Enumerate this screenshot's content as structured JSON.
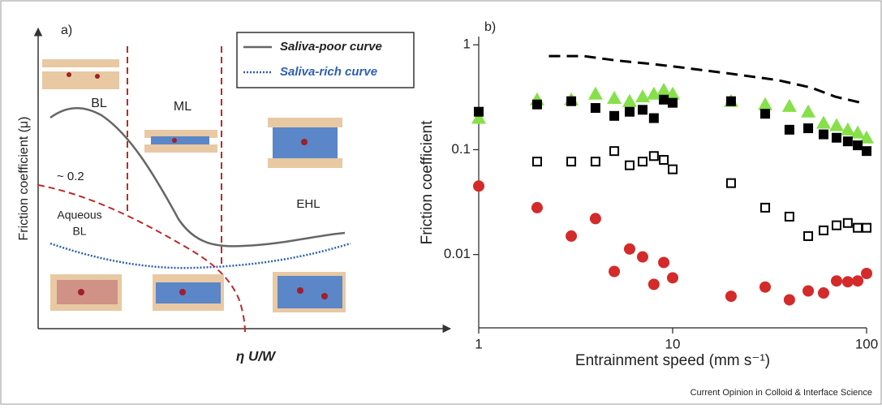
{
  "panel_a": {
    "label": "a)",
    "y_label": "Friction coefficient (μ)",
    "x_label": "η U/W",
    "legend": [
      {
        "name": "Saliva-poor curve",
        "color": "#666666"
      },
      {
        "name": "Saliva-rich curve",
        "color": "#2e5fb3"
      }
    ],
    "regions": [
      "BL",
      "ML",
      "EHL"
    ],
    "note": "~ 0.2",
    "aqueous": [
      "Aqueous",
      "BL"
    ]
  },
  "chart_data": {
    "type": "scatter",
    "label": "b)",
    "x_label": "Entrainment speed (mm s⁻¹)",
    "y_label": "Friction coefficient",
    "log_x": true,
    "log_y": true,
    "xlim": [
      1,
      100
    ],
    "ylim": [
      0.002,
      1.2
    ],
    "xticks": [
      1,
      10,
      100
    ],
    "yticks": [
      0.01,
      0.1,
      1
    ],
    "series": [
      {
        "marker": "dashed-line",
        "color": "#000000",
        "x": [
          2.3,
          3.5,
          5.1,
          7.6,
          11,
          20,
          35,
          52,
          69,
          94
        ],
        "values": [
          0.78,
          0.78,
          0.71,
          0.66,
          0.61,
          0.53,
          0.46,
          0.39,
          0.32,
          0.28
        ]
      },
      {
        "marker": "triangle",
        "color": "#86e04a",
        "x": [
          1,
          2,
          3,
          4,
          5,
          6,
          7,
          8,
          9,
          10,
          20,
          30,
          40,
          50,
          60,
          70,
          80,
          90,
          100
        ],
        "values": [
          0.2,
          0.3,
          0.3,
          0.34,
          0.31,
          0.29,
          0.32,
          0.34,
          0.37,
          0.34,
          0.29,
          0.27,
          0.26,
          0.23,
          0.18,
          0.17,
          0.155,
          0.145,
          0.13
        ]
      },
      {
        "marker": "square",
        "color": "#000000",
        "x": [
          1,
          2,
          3,
          4,
          5,
          6,
          7,
          8,
          9,
          10,
          20,
          30,
          40,
          50,
          60,
          70,
          80,
          90,
          100
        ],
        "values": [
          0.23,
          0.27,
          0.29,
          0.25,
          0.21,
          0.23,
          0.24,
          0.2,
          0.3,
          0.28,
          0.29,
          0.22,
          0.155,
          0.16,
          0.14,
          0.13,
          0.12,
          0.11,
          0.097
        ]
      },
      {
        "marker": "open-square",
        "color": "#000000",
        "x": [
          2,
          3,
          4,
          5,
          6,
          7,
          8,
          9,
          10,
          20,
          30,
          40,
          50,
          60,
          70,
          80,
          90,
          100
        ],
        "values": [
          0.077,
          0.077,
          0.077,
          0.097,
          0.071,
          0.077,
          0.087,
          0.08,
          0.065,
          0.048,
          0.028,
          0.023,
          0.015,
          0.017,
          0.019,
          0.02,
          0.018,
          0.018
        ]
      },
      {
        "marker": "circle",
        "color": "#d42a2a",
        "x": [
          1,
          2,
          3,
          4,
          5,
          6,
          7,
          8,
          9,
          10,
          20,
          30,
          40,
          50,
          60,
          70,
          80,
          90,
          100
        ],
        "values": [
          0.045,
          0.028,
          0.015,
          0.022,
          0.0069,
          0.0113,
          0.0095,
          0.0052,
          0.0084,
          0.006,
          0.004,
          0.0049,
          0.0037,
          0.0045,
          0.0043,
          0.0056,
          0.0055,
          0.0056,
          0.0066
        ]
      }
    ]
  },
  "footer": "Current Opinion in Colloid & Interface Science"
}
